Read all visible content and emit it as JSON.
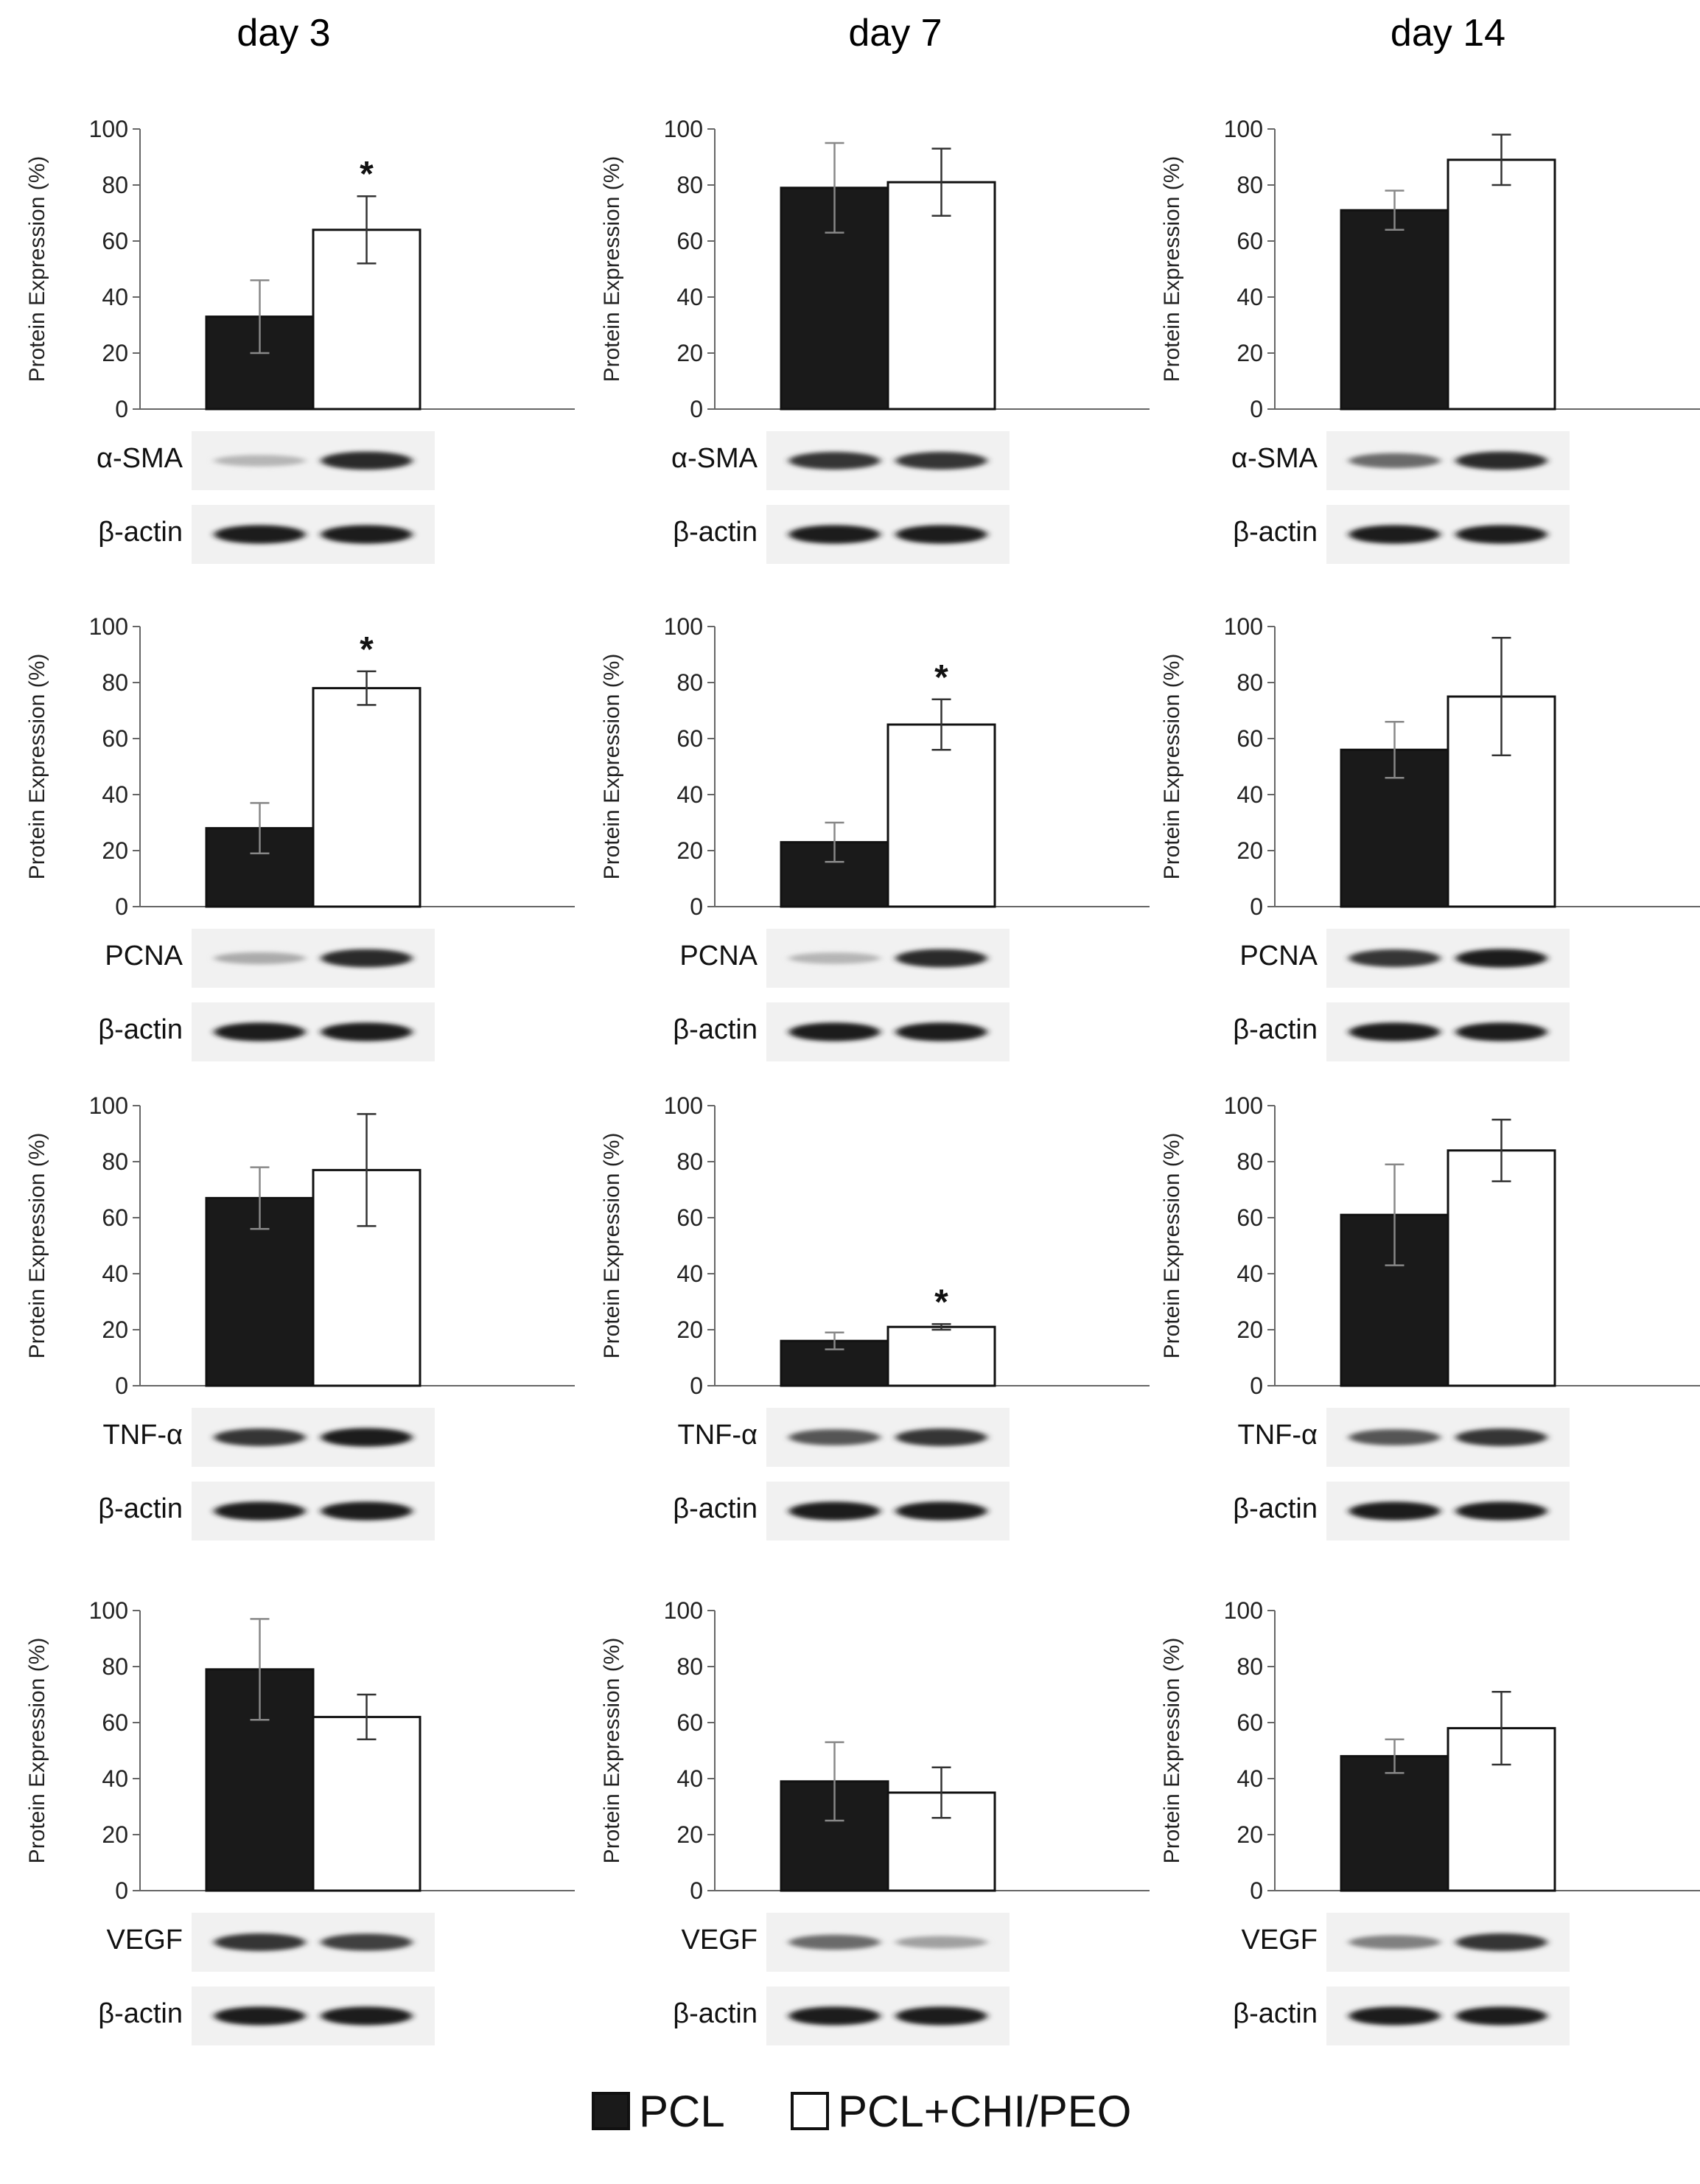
{
  "columns": [
    "day 3",
    "day 7",
    "day 14"
  ],
  "legend": [
    {
      "label": "PCL",
      "color": "#1a1a1a"
    },
    {
      "label": "PCL+CHI/PEO",
      "color": "#ffffff"
    }
  ],
  "ylabel": "Protein Expression (%)",
  "yticks": [
    "0",
    "20",
    "40",
    "60",
    "80",
    "100"
  ],
  "chart_data": [
    {
      "type": "bar",
      "column": "day 3",
      "row": 1,
      "protein": "α-SMA",
      "loading": "β-actin",
      "ylabel": "Protein Expression (%)",
      "ylim": [
        0,
        100
      ],
      "series": [
        {
          "name": "PCL",
          "values": [
            33
          ]
        },
        {
          "name": "PCL+CHI/PEO",
          "values": [
            64
          ]
        }
      ],
      "errors": [
        13,
        12
      ],
      "significant": true,
      "sig_symbol": "*",
      "band_intensity": [
        0.25,
        0.9
      ]
    },
    {
      "type": "bar",
      "column": "day 7",
      "row": 1,
      "protein": "α-SMA",
      "loading": "β-actin",
      "ylabel": "Protein Expression (%)",
      "ylim": [
        0,
        100
      ],
      "series": [
        {
          "name": "PCL",
          "values": [
            79
          ]
        },
        {
          "name": "PCL+CHI/PEO",
          "values": [
            81
          ]
        }
      ],
      "errors": [
        16,
        12
      ],
      "significant": false,
      "sig_symbol": "",
      "band_intensity": [
        0.85,
        0.85
      ]
    },
    {
      "type": "bar",
      "column": "day 14",
      "row": 1,
      "protein": "α-SMA",
      "loading": "β-actin",
      "ylabel": "Protein Expression (%)",
      "ylim": [
        0,
        100
      ],
      "series": [
        {
          "name": "PCL",
          "values": [
            71
          ]
        },
        {
          "name": "PCL+CHI/PEO",
          "values": [
            89
          ]
        }
      ],
      "errors": [
        7,
        9
      ],
      "significant": false,
      "sig_symbol": "",
      "band_intensity": [
        0.6,
        0.9
      ]
    },
    {
      "type": "bar",
      "column": "day 3",
      "row": 2,
      "protein": "PCNA",
      "loading": "β-actin",
      "ylabel": "Protein Expression (%)",
      "ylim": [
        0,
        100
      ],
      "series": [
        {
          "name": "PCL",
          "values": [
            28
          ]
        },
        {
          "name": "PCL+CHI/PEO",
          "values": [
            78
          ]
        }
      ],
      "errors": [
        9,
        6
      ],
      "significant": true,
      "sig_symbol": "*",
      "band_intensity": [
        0.3,
        0.9
      ]
    },
    {
      "type": "bar",
      "column": "day 7",
      "row": 2,
      "protein": "PCNA",
      "loading": "β-actin",
      "ylabel": "Protein Expression (%)",
      "ylim": [
        0,
        100
      ],
      "series": [
        {
          "name": "PCL",
          "values": [
            23
          ]
        },
        {
          "name": "PCL+CHI/PEO",
          "values": [
            65
          ]
        }
      ],
      "errors": [
        7,
        9
      ],
      "significant": true,
      "sig_symbol": "*",
      "band_intensity": [
        0.25,
        0.9
      ]
    },
    {
      "type": "bar",
      "column": "day 14",
      "row": 2,
      "protein": "PCNA",
      "loading": "β-actin",
      "ylabel": "Protein Expression (%)",
      "ylim": [
        0,
        100
      ],
      "series": [
        {
          "name": "PCL",
          "values": [
            56
          ]
        },
        {
          "name": "PCL+CHI/PEO",
          "values": [
            75
          ]
        }
      ],
      "errors": [
        10,
        21
      ],
      "significant": false,
      "sig_symbol": "",
      "band_intensity": [
        0.85,
        0.95
      ]
    },
    {
      "type": "bar",
      "column": "day 3",
      "row": 3,
      "protein": "TNF-α",
      "loading": "β-actin",
      "ylabel": "Protein Expression (%)",
      "ylim": [
        0,
        100
      ],
      "series": [
        {
          "name": "PCL",
          "values": [
            67
          ]
        },
        {
          "name": "PCL+CHI/PEO",
          "values": [
            77
          ]
        }
      ],
      "errors": [
        11,
        20
      ],
      "significant": false,
      "sig_symbol": "",
      "band_intensity": [
        0.85,
        0.95
      ]
    },
    {
      "type": "bar",
      "column": "day 7",
      "row": 3,
      "protein": "TNF-α",
      "loading": "β-actin",
      "ylabel": "Protein Expression (%)",
      "ylim": [
        0,
        100
      ],
      "series": [
        {
          "name": "PCL",
          "values": [
            16
          ]
        },
        {
          "name": "PCL+CHI/PEO",
          "values": [
            21
          ]
        }
      ],
      "errors": [
        3,
        1
      ],
      "significant": true,
      "sig_symbol": "*",
      "band_intensity": [
        0.7,
        0.85
      ]
    },
    {
      "type": "bar",
      "column": "day 14",
      "row": 3,
      "protein": "TNF-α",
      "loading": "β-actin",
      "ylabel": "Protein Expression (%)",
      "ylim": [
        0,
        100
      ],
      "series": [
        {
          "name": "PCL",
          "values": [
            61
          ]
        },
        {
          "name": "PCL+CHI/PEO",
          "values": [
            84
          ]
        }
      ],
      "errors": [
        18,
        11
      ],
      "significant": false,
      "sig_symbol": "",
      "band_intensity": [
        0.7,
        0.85
      ]
    },
    {
      "type": "bar",
      "column": "day 3",
      "row": 4,
      "protein": "VEGF",
      "loading": "β-actin",
      "ylabel": "Protein Expression (%)",
      "ylim": [
        0,
        100
      ],
      "series": [
        {
          "name": "PCL",
          "values": [
            79
          ]
        },
        {
          "name": "PCL+CHI/PEO",
          "values": [
            62
          ]
        }
      ],
      "errors": [
        18,
        8
      ],
      "significant": false,
      "sig_symbol": "",
      "band_intensity": [
        0.85,
        0.8
      ]
    },
    {
      "type": "bar",
      "column": "day 7",
      "row": 4,
      "protein": "VEGF",
      "loading": "β-actin",
      "ylabel": "Protein Expression (%)",
      "ylim": [
        0,
        100
      ],
      "series": [
        {
          "name": "PCL",
          "values": [
            39
          ]
        },
        {
          "name": "PCL+CHI/PEO",
          "values": [
            35
          ]
        }
      ],
      "errors": [
        14,
        9
      ],
      "significant": false,
      "sig_symbol": "",
      "band_intensity": [
        0.6,
        0.35
      ]
    },
    {
      "type": "bar",
      "column": "day 14",
      "row": 4,
      "protein": "VEGF",
      "loading": "β-actin",
      "ylabel": "Protein Expression (%)",
      "ylim": [
        0,
        100
      ],
      "series": [
        {
          "name": "PCL",
          "values": [
            48
          ]
        },
        {
          "name": "PCL+CHI/PEO",
          "values": [
            58
          ]
        }
      ],
      "errors": [
        6,
        13
      ],
      "significant": false,
      "sig_symbol": "",
      "band_intensity": [
        0.5,
        0.85
      ]
    }
  ]
}
